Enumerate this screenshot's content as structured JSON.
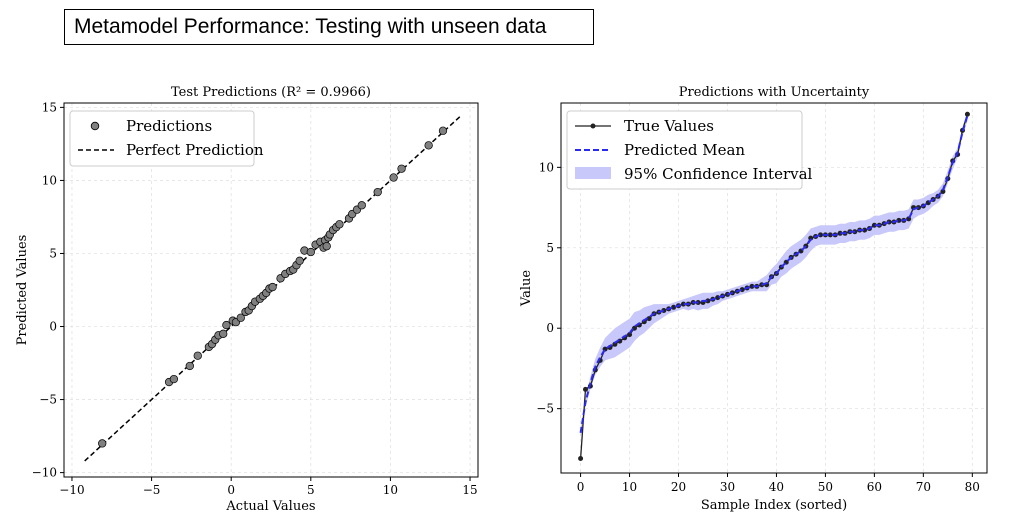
{
  "page_title": "Metamodel Performance: Testing with unseen data",
  "chart_data": [
    {
      "type": "scatter",
      "title": "Test Predictions (R² = 0.9966)",
      "xlabel": "Actual Values",
      "ylabel": "Predicted Values",
      "xlim": [
        -10.5,
        15.5
      ],
      "ylim": [
        -10.3,
        15.3
      ],
      "xticks": [
        -10,
        -5,
        0,
        5,
        10,
        15
      ],
      "yticks": [
        -10,
        -5,
        0,
        5,
        10,
        15
      ],
      "xtick_labels": [
        "−10",
        "−5",
        "0",
        "5",
        "10",
        "15"
      ],
      "ytick_labels": [
        "−10",
        "−5",
        "0",
        "5",
        "10",
        "15"
      ],
      "grid": true,
      "legend_position": "top-left",
      "legend": [
        "Predictions",
        "Perfect Prediction"
      ],
      "perfect_line": [
        -9.2,
        14.4
      ],
      "points_x": [
        -8.1,
        -3.9,
        -3.6,
        -2.6,
        -2.1,
        -1.4,
        -1.2,
        -1.0,
        -0.8,
        -0.5,
        -0.3,
        0.1,
        0.3,
        0.6,
        0.9,
        1.1,
        1.3,
        1.5,
        1.8,
        2.0,
        2.2,
        2.4,
        2.6,
        3.1,
        3.4,
        3.7,
        3.9,
        4.1,
        4.3,
        4.6,
        5.0,
        5.3,
        5.6,
        5.9,
        6.1,
        6.2,
        6.4,
        6.6,
        6.8,
        7.4,
        7.6,
        7.9,
        8.2,
        9.2,
        10.2,
        10.7,
        12.4,
        13.3,
        5.8,
        6.0
      ],
      "points_y": [
        -8.0,
        -3.8,
        -3.6,
        -2.7,
        -2.0,
        -1.4,
        -1.2,
        -0.9,
        -0.6,
        -0.5,
        0.1,
        0.4,
        0.3,
        0.6,
        1.0,
        1.1,
        1.4,
        1.7,
        1.9,
        2.1,
        2.3,
        2.6,
        2.7,
        3.3,
        3.6,
        3.8,
        3.9,
        4.2,
        4.5,
        5.2,
        5.1,
        5.6,
        5.8,
        5.9,
        6.1,
        6.3,
        6.6,
        6.8,
        7.0,
        7.4,
        7.7,
        8.0,
        8.3,
        9.2,
        10.2,
        10.8,
        12.4,
        13.4,
        5.4,
        5.5
      ],
      "point_color": "#808080"
    },
    {
      "type": "line",
      "title": "Predictions with Uncertainty",
      "xlabel": "Sample Index (sorted)",
      "ylabel": "Value",
      "xlim": [
        -4,
        83
      ],
      "ylim": [
        -9,
        14
      ],
      "xticks": [
        0,
        10,
        20,
        30,
        40,
        50,
        60,
        70,
        80
      ],
      "yticks": [
        -5,
        0,
        5,
        10
      ],
      "xtick_labels": [
        "0",
        "10",
        "20",
        "30",
        "40",
        "50",
        "60",
        "70",
        "80"
      ],
      "ytick_labels": [
        "−5",
        "0",
        "5",
        "10"
      ],
      "grid": true,
      "legend_position": "top-left",
      "legend": [
        "True Values",
        "Predicted Mean",
        "95% Confidence Interval"
      ],
      "true_values": [
        -8.1,
        -3.8,
        -3.6,
        -2.6,
        -2.0,
        -1.3,
        -1.2,
        -1.0,
        -0.8,
        -0.6,
        -0.4,
        0.0,
        0.2,
        0.4,
        0.6,
        0.9,
        1.0,
        1.1,
        1.2,
        1.3,
        1.4,
        1.5,
        1.5,
        1.6,
        1.6,
        1.6,
        1.7,
        1.8,
        1.9,
        2.0,
        2.1,
        2.2,
        2.3,
        2.4,
        2.5,
        2.6,
        2.6,
        2.7,
        2.7,
        3.2,
        3.4,
        3.8,
        4.1,
        4.4,
        4.6,
        4.8,
        5.1,
        5.6,
        5.7,
        5.8,
        5.8,
        5.8,
        5.8,
        5.9,
        5.9,
        6.0,
        6.0,
        6.1,
        6.1,
        6.2,
        6.4,
        6.4,
        6.5,
        6.6,
        6.6,
        6.7,
        6.7,
        6.8,
        7.5,
        7.5,
        7.6,
        7.8,
        8.0,
        8.2,
        8.5,
        9.3,
        10.4,
        10.8,
        12.3,
        13.3
      ],
      "predicted_mean": [
        -6.5,
        -4.6,
        -3.4,
        -2.4,
        -1.8,
        -1.3,
        -1.1,
        -0.9,
        -0.7,
        -0.5,
        -0.3,
        0.1,
        0.3,
        0.5,
        0.7,
        0.9,
        1.0,
        1.1,
        1.2,
        1.3,
        1.4,
        1.5,
        1.5,
        1.6,
        1.6,
        1.7,
        1.7,
        1.8,
        1.9,
        2.0,
        2.1,
        2.2,
        2.3,
        2.4,
        2.5,
        2.6,
        2.6,
        2.7,
        2.8,
        3.2,
        3.4,
        3.8,
        4.1,
        4.4,
        4.6,
        4.8,
        5.1,
        5.5,
        5.7,
        5.8,
        5.8,
        5.8,
        5.8,
        5.9,
        5.9,
        6.0,
        6.0,
        6.1,
        6.1,
        6.2,
        6.4,
        6.4,
        6.5,
        6.6,
        6.6,
        6.7,
        6.7,
        6.8,
        7.4,
        7.5,
        7.6,
        7.8,
        8.0,
        8.2,
        8.6,
        9.4,
        10.3,
        10.9,
        12.2,
        13.2
      ],
      "ci_halfwidth": [
        0.3,
        0.3,
        0.4,
        0.5,
        0.6,
        0.7,
        0.8,
        0.9,
        0.9,
        0.9,
        0.9,
        0.9,
        0.8,
        0.8,
        0.7,
        0.6,
        0.5,
        0.4,
        0.3,
        0.3,
        0.3,
        0.3,
        0.4,
        0.4,
        0.5,
        0.5,
        0.5,
        0.4,
        0.4,
        0.3,
        0.3,
        0.3,
        0.3,
        0.3,
        0.3,
        0.3,
        0.3,
        0.4,
        0.5,
        0.5,
        0.6,
        0.6,
        0.7,
        0.7,
        0.7,
        0.7,
        0.7,
        0.7,
        0.6,
        0.6,
        0.6,
        0.6,
        0.6,
        0.6,
        0.6,
        0.6,
        0.6,
        0.6,
        0.6,
        0.6,
        0.6,
        0.6,
        0.6,
        0.6,
        0.6,
        0.6,
        0.6,
        0.6,
        0.6,
        0.5,
        0.5,
        0.5,
        0.4,
        0.4,
        0.4,
        0.4,
        0.4,
        0.3,
        0.3,
        0.3
      ],
      "true_color": "#222222",
      "pred_color": "#2a2af0",
      "ci_color": "#c8c8fa"
    }
  ]
}
